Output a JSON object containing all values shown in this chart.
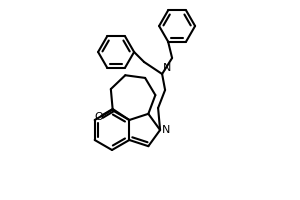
{
  "background_color": "#ffffff",
  "line_color": "#000000",
  "line_width": 1.5,
  "figsize": [
    3.0,
    2.0
  ],
  "dpi": 100,
  "xlim": [
    0,
    300
  ],
  "ylim": [
    0,
    200
  ]
}
